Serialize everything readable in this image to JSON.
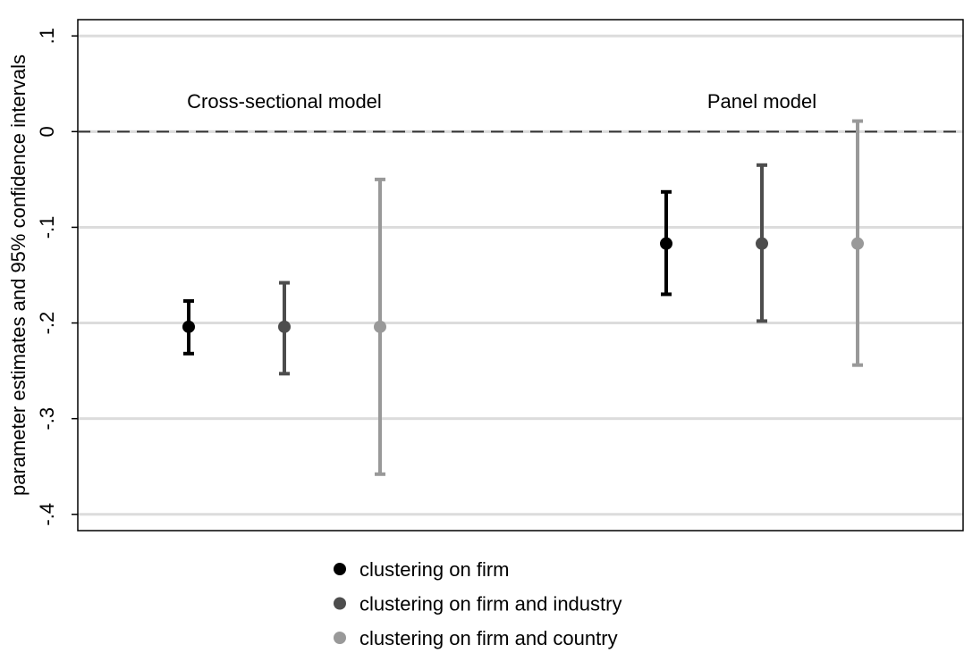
{
  "chart_data": {
    "type": "errorbar",
    "y_label": "parameter estimates and 95% confidence intervals",
    "categories": [
      "Cross-sectional model",
      "Panel model"
    ],
    "ylim": [
      -0.417,
      0.117
    ],
    "yticks": [
      {
        "value": 0.1,
        "label": ".1"
      },
      0,
      {
        "value": -0.1,
        "label": "-.1"
      },
      {
        "value": -0.2,
        "label": "-.2"
      },
      {
        "value": -0.3,
        "label": "-.3"
      },
      {
        "value": -0.4,
        "label": "-.4"
      }
    ],
    "grid": true,
    "reference_line": 0,
    "legend": "bottom",
    "series": [
      {
        "name": "clustering on firm",
        "color": "#000000",
        "values": [
          -0.204,
          -0.117
        ],
        "lower": [
          -0.232,
          -0.17
        ],
        "upper": [
          -0.177,
          -0.063
        ]
      },
      {
        "name": "clustering on firm and industry",
        "color": "#4d4d4d",
        "values": [
          -0.204,
          -0.117
        ],
        "lower": [
          -0.253,
          -0.198
        ],
        "upper": [
          -0.158,
          -0.035
        ]
      },
      {
        "name": "clustering on firm and country",
        "color": "#999999",
        "values": [
          -0.204,
          -0.117
        ],
        "lower": [
          -0.358,
          -0.244
        ],
        "upper": [
          -0.05,
          0.011
        ]
      }
    ]
  }
}
